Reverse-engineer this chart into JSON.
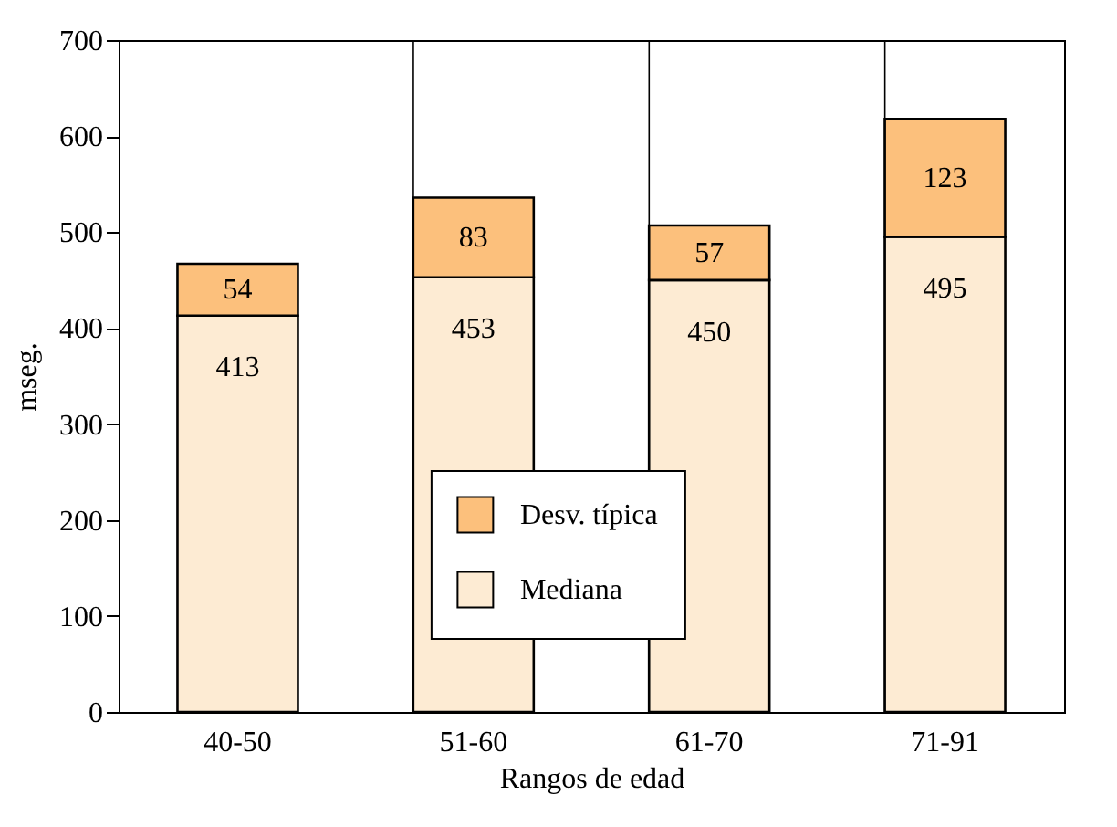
{
  "chart_data": {
    "type": "bar",
    "stacked": true,
    "xlabel": "Rangos de edad",
    "ylabel": "mseg.",
    "categories": [
      "40-50",
      "51-60",
      "61-70",
      "71-91"
    ],
    "series": [
      {
        "name": "Mediana",
        "color": "#fdebd3",
        "values": [
          413,
          453,
          450,
          495
        ]
      },
      {
        "name": "Desv. típica",
        "color": "#fcc07c",
        "values": [
          54,
          83,
          57,
          123
        ]
      }
    ],
    "ylim": [
      0,
      700
    ],
    "yticks": [
      0,
      100,
      200,
      300,
      400,
      500,
      600,
      700
    ],
    "grid": "x",
    "legend": "bottom",
    "data_labels": true
  }
}
